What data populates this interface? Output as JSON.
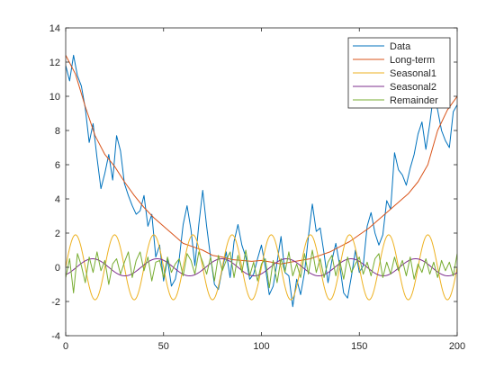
{
  "chart_data": {
    "type": "line",
    "title": "",
    "xlabel": "",
    "ylabel": "",
    "xlim": [
      0,
      200
    ],
    "ylim": [
      -4,
      14
    ],
    "xticks": [
      0,
      50,
      100,
      150,
      200
    ],
    "yticks": [
      -4,
      -2,
      0,
      2,
      4,
      6,
      8,
      10,
      12,
      14
    ],
    "grid": false,
    "legend_position": "top-right",
    "series": [
      {
        "name": "Data",
        "color": "#0072BD",
        "x": [
          0,
          2,
          4,
          6,
          8,
          10,
          12,
          14,
          16,
          18,
          20,
          22,
          24,
          26,
          28,
          30,
          32,
          34,
          36,
          38,
          40,
          42,
          44,
          46,
          48,
          50,
          52,
          54,
          56,
          58,
          60,
          62,
          64,
          66,
          68,
          70,
          72,
          74,
          76,
          78,
          80,
          82,
          84,
          86,
          88,
          90,
          92,
          94,
          96,
          98,
          100,
          102,
          104,
          106,
          108,
          110,
          112,
          114,
          116,
          118,
          120,
          122,
          124,
          126,
          128,
          130,
          132,
          134,
          136,
          138,
          140,
          142,
          144,
          146,
          148,
          150,
          152,
          154,
          156,
          158,
          160,
          162,
          164,
          166,
          168,
          170,
          172,
          174,
          176,
          178,
          180,
          182,
          184,
          186,
          188,
          190,
          192,
          194,
          196,
          198,
          200
        ],
        "values": [
          11.8,
          10.9,
          12.4,
          11.2,
          10.6,
          9.3,
          7.3,
          8.4,
          6.4,
          4.6,
          5.5,
          6.6,
          5.1,
          7.7,
          6.8,
          4.9,
          4.2,
          3.6,
          3.1,
          3.3,
          4.2,
          2.4,
          3.1,
          0.6,
          1.3,
          -0.8,
          0.5,
          -1.1,
          -0.7,
          0.5,
          2.5,
          3.6,
          2.2,
          0.1,
          2.5,
          4.5,
          2.4,
          0.6,
          -1.0,
          -1.3,
          -0.1,
          0.9,
          -0.6,
          1.5,
          2.5,
          1.3,
          0.6,
          -0.7,
          -0.4,
          0.5,
          1.3,
          0.0,
          -1.6,
          -1.1,
          0.3,
          1.8,
          -0.3,
          -0.5,
          -2.3,
          -0.7,
          -1.6,
          -0.3,
          1.8,
          3.7,
          2.1,
          2.3,
          0.8,
          -0.9,
          0.4,
          1.4,
          0.1,
          -1.5,
          -1.8,
          -0.5,
          1.0,
          -0.3,
          0.1,
          2.4,
          3.2,
          2.0,
          1.3,
          1.9,
          3.9,
          3.4,
          6.7,
          5.7,
          5.4,
          4.8,
          5.8,
          6.6,
          7.8,
          8.5,
          6.9,
          8.4,
          10.2,
          9.2,
          8.0,
          7.4,
          7.0,
          9.1,
          9.5
        ]
      },
      {
        "name": "Long-term",
        "color": "#D95319",
        "x": [
          0,
          5,
          10,
          15,
          20,
          25,
          30,
          35,
          40,
          45,
          50,
          55,
          60,
          65,
          70,
          75,
          80,
          85,
          90,
          95,
          100,
          105,
          110,
          115,
          120,
          125,
          130,
          135,
          140,
          145,
          150,
          155,
          160,
          165,
          170,
          175,
          180,
          185,
          190,
          195,
          200
        ],
        "values": [
          12.4,
          11.3,
          9.4,
          7.7,
          6.6,
          5.9,
          5.0,
          4.2,
          3.5,
          2.9,
          2.4,
          1.9,
          1.4,
          1.2,
          1.0,
          0.7,
          0.6,
          0.45,
          0.4,
          0.35,
          0.4,
          0.3,
          0.2,
          0.3,
          0.4,
          0.5,
          0.7,
          0.9,
          1.2,
          1.5,
          1.9,
          2.3,
          2.8,
          3.3,
          3.8,
          4.3,
          5.0,
          6.0,
          8.0,
          9.2,
          10.0
        ]
      },
      {
        "name": "Seasonal1",
        "color": "#EDB120",
        "amplitude": 1.9,
        "period": 20,
        "phase_deg": 0,
        "x_range": [
          0,
          200
        ]
      },
      {
        "name": "Seasonal2",
        "color": "#7E2F8E",
        "amplitude": 0.5,
        "period": 33,
        "phase_deg": -60,
        "x_range": [
          0,
          200
        ]
      },
      {
        "name": "Remainder",
        "color": "#77AC30",
        "x": [
          0,
          2,
          4,
          6,
          8,
          10,
          12,
          14,
          16,
          18,
          20,
          22,
          24,
          26,
          28,
          30,
          32,
          34,
          36,
          38,
          40,
          42,
          44,
          46,
          48,
          50,
          52,
          54,
          56,
          58,
          60,
          62,
          64,
          66,
          68,
          70,
          72,
          74,
          76,
          78,
          80,
          82,
          84,
          86,
          88,
          90,
          92,
          94,
          96,
          98,
          100,
          102,
          104,
          106,
          108,
          110,
          112,
          114,
          116,
          118,
          120,
          122,
          124,
          126,
          128,
          130,
          132,
          134,
          136,
          138,
          140,
          142,
          144,
          146,
          148,
          150,
          152,
          154,
          156,
          158,
          160,
          162,
          164,
          166,
          168,
          170,
          172,
          174,
          176,
          178,
          180,
          182,
          184,
          186,
          188,
          190,
          192,
          194,
          196,
          198,
          200
        ],
        "values": [
          -0.6,
          0.5,
          -1.5,
          0.8,
          0.1,
          -0.9,
          0.6,
          -0.3,
          0.9,
          -0.2,
          0.4,
          -1.0,
          0.2,
          0.5,
          -0.4,
          0.3,
          0.9,
          -0.6,
          0.4,
          0.9,
          -0.2,
          0.6,
          -0.8,
          0.3,
          0.4,
          -0.6,
          0.6,
          -0.3,
          0.2,
          0.5,
          -0.5,
          0.8,
          0.4,
          -0.4,
          0.9,
          0.3,
          -0.4,
          0.6,
          -0.8,
          0.7,
          -0.2,
          0.4,
          0.9,
          -0.6,
          0.7,
          -0.3,
          1.0,
          -0.5,
          0.3,
          -0.8,
          0.2,
          0.5,
          -1.2,
          0.4,
          -0.9,
          0.5,
          -0.3,
          0.9,
          -0.5,
          0.2,
          -0.6,
          0.8,
          -0.4,
          1.0,
          -0.3,
          0.5,
          -0.6,
          0.3,
          0.7,
          -0.5,
          0.4,
          -0.7,
          0.6,
          -0.3,
          0.2,
          0.6,
          -0.4,
          0.3,
          -0.5,
          0.5,
          0.8,
          -0.6,
          0.3,
          -0.4,
          0.6,
          -0.2,
          0.4,
          -0.5,
          0.6,
          -0.7,
          0.2,
          -0.3,
          0.5,
          -0.4,
          0.3,
          -0.6,
          0.4,
          -0.2,
          0.3,
          -0.5,
          0.8
        ]
      }
    ]
  }
}
